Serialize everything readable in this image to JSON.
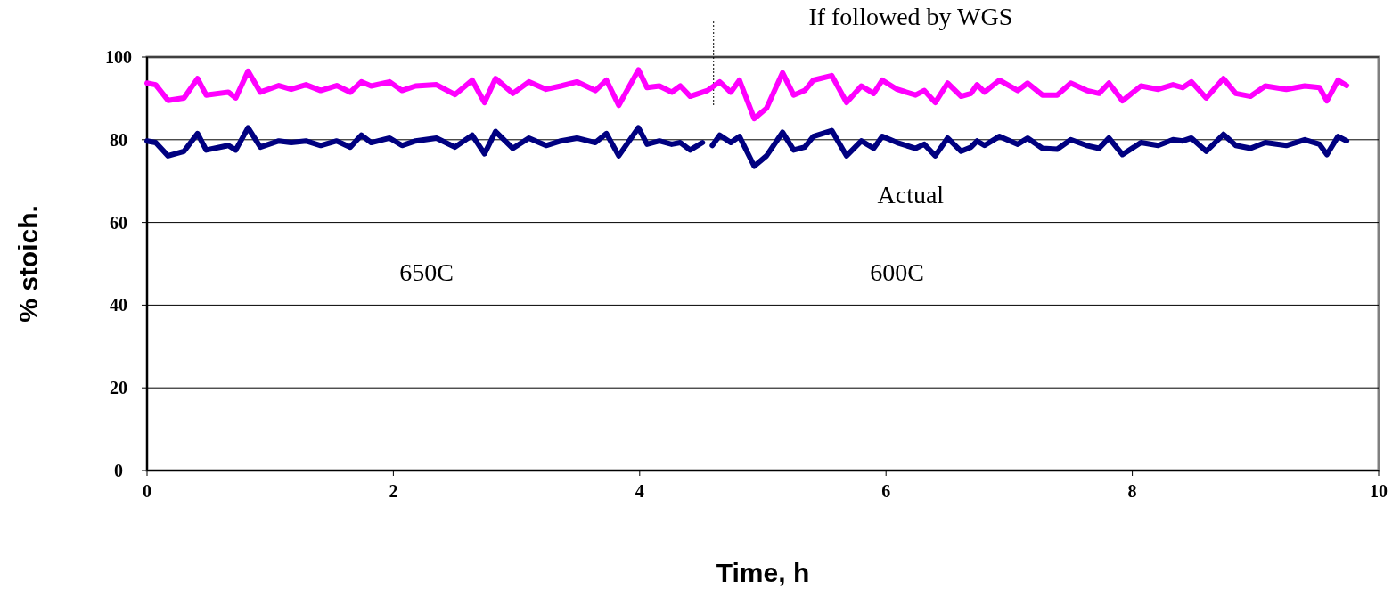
{
  "chart_data": {
    "type": "line",
    "xlabel": "Time, h",
    "ylabel": "% stoich.",
    "xlim": [
      0,
      10
    ],
    "ylim": [
      0,
      100
    ],
    "xticks": [
      0,
      2,
      4,
      6,
      8,
      10
    ],
    "yticks": [
      0,
      20,
      40,
      60,
      80,
      100
    ],
    "grid": "y",
    "legend": false,
    "series": [
      {
        "name": "If followed by WGS",
        "color": "#ff00ff",
        "x": [
          0,
          0.07,
          0.17,
          0.3,
          0.41,
          0.48,
          0.66,
          0.72,
          0.82,
          0.92,
          1.07,
          1.17,
          1.29,
          1.41,
          1.54,
          1.65,
          1.74,
          1.82,
          1.97,
          2.07,
          2.18,
          2.35,
          2.5,
          2.64,
          2.74,
          2.83,
          2.97,
          3.1,
          3.24,
          3.36,
          3.49,
          3.64,
          3.73,
          3.83,
          3.99,
          4.06,
          4.16,
          4.26,
          4.33,
          4.41,
          4.55,
          4.65,
          4.74,
          4.81,
          4.93,
          5.03,
          5.16,
          5.25,
          5.34,
          5.41,
          5.56,
          5.68,
          5.8,
          5.9,
          5.97,
          6.09,
          6.24,
          6.31,
          6.4,
          6.5,
          6.61,
          6.69,
          6.74,
          6.8,
          6.92,
          7.07,
          7.15,
          7.27,
          7.39,
          7.5,
          7.63,
          7.73,
          7.81,
          7.92,
          8.07,
          8.21,
          8.33,
          8.41,
          8.48,
          8.6,
          8.74,
          8.84,
          8.96,
          9.08,
          9.25,
          9.4,
          9.52,
          9.58,
          9.67,
          9.74
        ],
        "values": [
          93.7,
          93.3,
          89.5,
          90.1,
          94.8,
          90.8,
          91.5,
          90.1,
          96.6,
          91.5,
          93.1,
          92.2,
          93.3,
          91.9,
          93.1,
          91.5,
          94.0,
          93.0,
          94.0,
          91.9,
          93.0,
          93.3,
          90.9,
          94.4,
          89.0,
          94.8,
          91.2,
          94.0,
          92.2,
          93.0,
          94.0,
          91.9,
          94.4,
          88.3,
          96.9,
          92.6,
          93.0,
          91.5,
          93.0,
          90.5,
          91.9,
          94.0,
          91.5,
          94.4,
          85.1,
          87.6,
          96.2,
          90.8,
          91.9,
          94.4,
          95.5,
          89.0,
          93.0,
          91.2,
          94.4,
          92.2,
          90.8,
          91.9,
          89.0,
          93.7,
          90.5,
          91.2,
          93.3,
          91.5,
          94.4,
          91.9,
          93.7,
          90.8,
          90.8,
          93.7,
          91.9,
          91.2,
          93.7,
          89.4,
          93.0,
          92.2,
          93.3,
          92.6,
          94.0,
          90.1,
          94.8,
          91.2,
          90.5,
          93.0,
          92.2,
          93.0,
          92.6,
          89.4,
          94.4,
          93.1
        ]
      },
      {
        "name": "Actual",
        "color": "#000080",
        "x": [
          0,
          0.07,
          0.17,
          0.3,
          0.41,
          0.48,
          0.66,
          0.72,
          0.82,
          0.92,
          1.07,
          1.17,
          1.29,
          1.41,
          1.54,
          1.65,
          1.74,
          1.82,
          1.97,
          2.07,
          2.18,
          2.35,
          2.5,
          2.64,
          2.74,
          2.83,
          2.97,
          3.1,
          3.24,
          3.36,
          3.49,
          3.64,
          3.73,
          3.83,
          3.99,
          4.06,
          4.16,
          4.26,
          4.33,
          4.41,
          4.51,
          4.55,
          4.59,
          4.65,
          4.74,
          4.81,
          4.93,
          5.03,
          5.16,
          5.25,
          5.34,
          5.41,
          5.56,
          5.68,
          5.8,
          5.9,
          5.97,
          6.09,
          6.24,
          6.31,
          6.4,
          6.5,
          6.61,
          6.69,
          6.74,
          6.8,
          6.92,
          7.07,
          7.15,
          7.27,
          7.39,
          7.5,
          7.63,
          7.73,
          7.81,
          7.92,
          8.07,
          8.21,
          8.33,
          8.41,
          8.48,
          8.6,
          8.74,
          8.84,
          8.96,
          9.08,
          9.25,
          9.4,
          9.52,
          9.58,
          9.67,
          9.74
        ],
        "values": [
          79.7,
          79.3,
          76.1,
          77.2,
          81.5,
          77.5,
          78.6,
          77.5,
          82.9,
          78.2,
          79.7,
          79.3,
          79.7,
          78.6,
          79.7,
          78.2,
          81.1,
          79.3,
          80.4,
          78.6,
          79.7,
          80.4,
          78.2,
          81.1,
          76.6,
          82.0,
          77.9,
          80.4,
          78.6,
          79.7,
          80.4,
          79.3,
          81.5,
          76.1,
          82.9,
          78.9,
          79.7,
          78.9,
          79.3,
          77.5,
          79.3,
          null,
          78.6,
          81.1,
          79.3,
          80.8,
          73.6,
          76.1,
          81.8,
          77.5,
          78.2,
          80.8,
          82.2,
          76.1,
          79.7,
          77.9,
          80.8,
          79.3,
          77.9,
          78.9,
          76.1,
          80.4,
          77.2,
          78.2,
          79.7,
          78.6,
          80.8,
          78.9,
          80.4,
          77.9,
          77.7,
          80.0,
          78.6,
          77.9,
          80.4,
          76.4,
          79.3,
          78.6,
          80.0,
          79.7,
          80.4,
          77.2,
          81.3,
          78.6,
          77.9,
          79.3,
          78.6,
          80.0,
          78.9,
          76.4,
          80.8,
          79.7
        ]
      }
    ],
    "ref_lines": [
      {
        "axis": "x",
        "value": 4.6,
        "line_style": "dotted",
        "color": "#000000"
      }
    ],
    "annotations": [
      "650C",
      "600C"
    ]
  }
}
